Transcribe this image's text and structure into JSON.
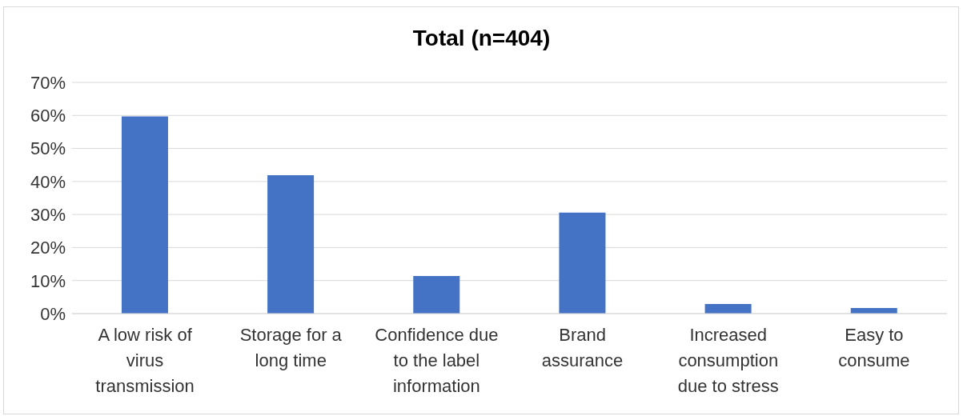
{
  "chart_data": {
    "type": "bar",
    "title": "Total (n=404)",
    "categories": [
      "A low risk of virus transmission",
      "Storage for a long time",
      "Confidence due to the label information",
      "Brand assurance",
      "Increased consumption due to stress",
      "Easy to consume"
    ],
    "values": [
      59.7,
      41.9,
      11.4,
      30.6,
      2.9,
      1.7
    ],
    "color": "#4472c4",
    "ylim": [
      0,
      70
    ],
    "yticks": [
      {
        "value": 0,
        "label": "0%"
      },
      {
        "value": 10,
        "label": "10%"
      },
      {
        "value": 20,
        "label": "20%"
      },
      {
        "value": 30,
        "label": "30%"
      },
      {
        "value": 40,
        "label": "40%"
      },
      {
        "value": 50,
        "label": "50%"
      },
      {
        "value": 60,
        "label": "60%"
      },
      {
        "value": 70,
        "label": "70%"
      }
    ],
    "grid": "y",
    "legend": false
  }
}
